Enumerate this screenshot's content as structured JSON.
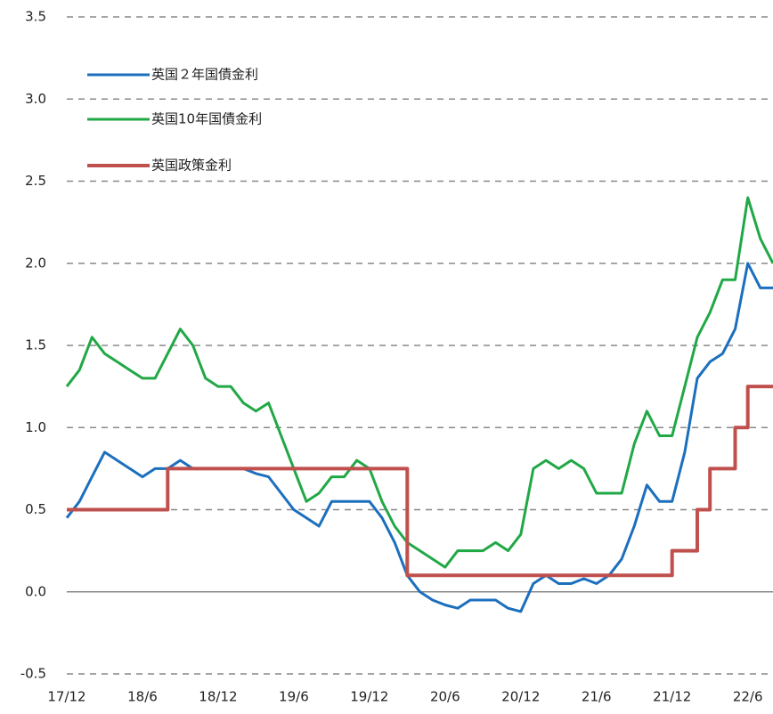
{
  "chart_data": {
    "type": "line",
    "xlim": [
      0,
      56
    ],
    "xticks": [
      {
        "value": 0,
        "label": "17/12"
      },
      {
        "value": 6,
        "label": "18/6"
      },
      {
        "value": 12,
        "label": "18/12"
      },
      {
        "value": 18,
        "label": "19/6"
      },
      {
        "value": 24,
        "label": "19/12"
      },
      {
        "value": 30,
        "label": "20/6"
      },
      {
        "value": 36,
        "label": "20/12"
      },
      {
        "value": 42,
        "label": "21/6"
      },
      {
        "value": 48,
        "label": "21/12"
      },
      {
        "value": 54,
        "label": "22/6"
      }
    ],
    "ylim": [
      -0.5,
      3.5
    ],
    "yticks": [
      {
        "value": -0.5,
        "label": "-0.5"
      },
      {
        "value": 0,
        "label": "0.0"
      },
      {
        "value": 0.5,
        "label": "0.5"
      },
      {
        "value": 1,
        "label": "1.0"
      },
      {
        "value": 1.5,
        "label": "1.5"
      },
      {
        "value": 2,
        "label": "2.0"
      },
      {
        "value": 2.5,
        "label": "2.5"
      },
      {
        "value": 3,
        "label": "3.0"
      },
      {
        "value": 3.5,
        "label": "3.5"
      }
    ],
    "grid": true,
    "legend": "upper left",
    "series": [
      {
        "name": "英国２年国債金利",
        "color": "#1b6fbd",
        "x": [
          0,
          1,
          2,
          3,
          4,
          5,
          6,
          7,
          8,
          9,
          10,
          11,
          12,
          13,
          14,
          15,
          16,
          17,
          18,
          19,
          20,
          21,
          22,
          23,
          24,
          25,
          26,
          27,
          28,
          29,
          30,
          31,
          32,
          33,
          34,
          35,
          36,
          37,
          38,
          39,
          40,
          41,
          42,
          43,
          44,
          45,
          46,
          47,
          48,
          49,
          50,
          51,
          52,
          53,
          54,
          55,
          56
        ],
        "values": [
          0.45,
          0.55,
          0.7,
          0.85,
          0.8,
          0.75,
          0.7,
          0.75,
          0.75,
          0.8,
          0.75,
          0.75,
          0.75,
          0.75,
          0.75,
          0.72,
          0.7,
          0.6,
          0.5,
          0.45,
          0.4,
          0.55,
          0.55,
          0.55,
          0.55,
          0.45,
          0.3,
          0.1,
          0.0,
          -0.05,
          -0.08,
          -0.1,
          -0.05,
          -0.05,
          -0.05,
          -0.1,
          -0.12,
          0.05,
          0.1,
          0.05,
          0.05,
          0.08,
          0.05,
          0.1,
          0.2,
          0.4,
          0.65,
          0.55,
          0.55,
          0.85,
          1.3,
          1.4,
          1.45,
          1.6,
          2.0,
          1.85,
          1.85
        ]
      },
      {
        "name": "英国10年国債金利",
        "color": "#21a846",
        "x": [
          0,
          1,
          2,
          3,
          4,
          5,
          6,
          7,
          8,
          9,
          10,
          11,
          12,
          13,
          14,
          15,
          16,
          17,
          18,
          19,
          20,
          21,
          22,
          23,
          24,
          25,
          26,
          27,
          28,
          29,
          30,
          31,
          32,
          33,
          34,
          35,
          36,
          37,
          38,
          39,
          40,
          41,
          42,
          43,
          44,
          45,
          46,
          47,
          48,
          49,
          50,
          51,
          52,
          53,
          54,
          55,
          56
        ],
        "values": [
          1.25,
          1.35,
          1.55,
          1.45,
          1.4,
          1.35,
          1.3,
          1.3,
          1.45,
          1.6,
          1.5,
          1.3,
          1.25,
          1.25,
          1.15,
          1.1,
          1.15,
          0.95,
          0.75,
          0.55,
          0.6,
          0.7,
          0.7,
          0.8,
          0.75,
          0.55,
          0.4,
          0.3,
          0.25,
          0.2,
          0.15,
          0.25,
          0.25,
          0.25,
          0.3,
          0.25,
          0.35,
          0.75,
          0.8,
          0.75,
          0.8,
          0.75,
          0.6,
          0.6,
          0.6,
          0.9,
          1.1,
          0.95,
          0.95,
          1.25,
          1.55,
          1.7,
          1.9,
          1.9,
          2.4,
          2.15,
          2.0
        ]
      },
      {
        "name": "英国政策金利",
        "color": "#c0504d",
        "x": [
          0,
          8,
          8,
          27,
          27,
          48,
          48,
          50,
          50,
          51,
          51,
          53,
          53,
          54,
          54,
          56
        ],
        "values": [
          0.5,
          0.5,
          0.75,
          0.75,
          0.1,
          0.1,
          0.25,
          0.25,
          0.5,
          0.5,
          0.75,
          0.75,
          1.0,
          1.0,
          1.25,
          1.25
        ]
      }
    ]
  }
}
